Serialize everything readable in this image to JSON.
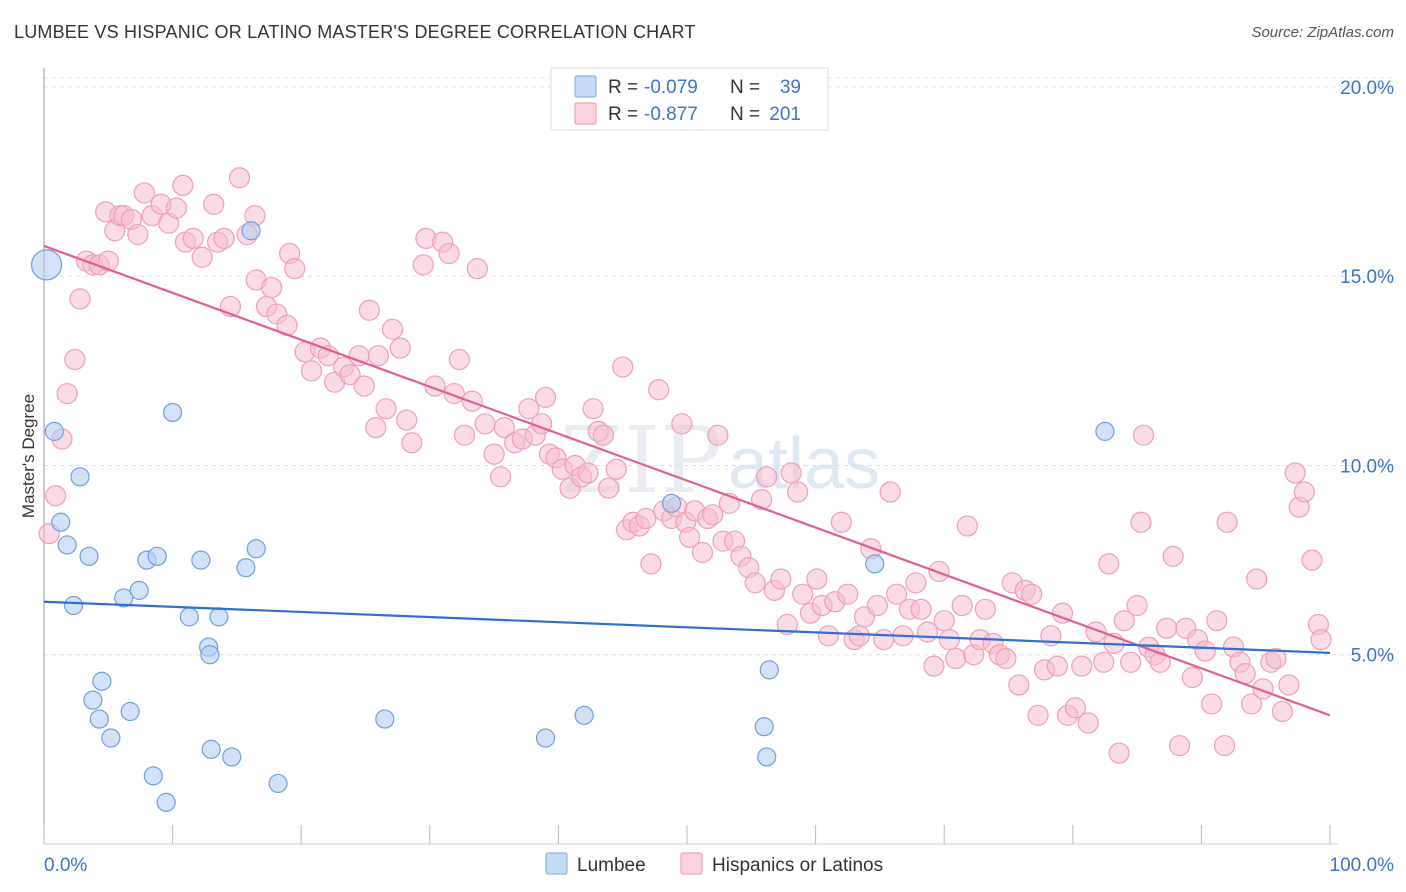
{
  "header": {
    "title": "LUMBEE VS HISPANIC OR LATINO MASTER'S DEGREE CORRELATION CHART",
    "source": "Source: ZipAtlas.com"
  },
  "watermark": {
    "zip": "ZIP",
    "atlas": "atlas"
  },
  "legend_top": {
    "rows": [
      {
        "r_label": "R =",
        "r_value": "-0.079",
        "n_label": "N =",
        "n_value": "39",
        "color": "#a9c6ee"
      },
      {
        "r_label": "R =",
        "r_value": "-0.877",
        "n_label": "N =",
        "n_value": "201",
        "color": "#f6b8cb"
      }
    ]
  },
  "legend_bottom": {
    "items": [
      {
        "label": "Lumbee",
        "color": "#a9c6ee"
      },
      {
        "label": "Hispanics or Latinos",
        "color": "#f6b8cb"
      }
    ]
  },
  "chart_data": {
    "type": "scatter",
    "title": "LUMBEE VS HISPANIC OR LATINO MASTER'S DEGREE CORRELATION CHART",
    "xlabel": "",
    "ylabel": "Master's Degree",
    "xlim": [
      0,
      100
    ],
    "ylim": [
      0,
      20.5
    ],
    "x_tick_labels": [
      "0.0%",
      "100.0%"
    ],
    "y_ticks": [
      5,
      10,
      15,
      20
    ],
    "y_tick_labels": [
      "5.0%",
      "10.0%",
      "15.0%",
      "20.0%"
    ],
    "grid": true,
    "legend_position": "top-center",
    "colors": {
      "lumbee": "#5b8fd6",
      "hispanic": "#e8799e",
      "lumbee_line": "#2f6fd0",
      "hispanic_line": "#e0608c"
    },
    "series": [
      {
        "name": "Lumbee",
        "trend": {
          "x": [
            0,
            100
          ],
          "y": [
            6.4,
            5.05
          ]
        },
        "points": [
          [
            0.2,
            15.3
          ],
          [
            0.8,
            10.9
          ],
          [
            1.3,
            8.5
          ],
          [
            1.8,
            7.9
          ],
          [
            2.3,
            6.3
          ],
          [
            2.8,
            9.7
          ],
          [
            3.5,
            7.6
          ],
          [
            3.8,
            3.8
          ],
          [
            4.3,
            3.3
          ],
          [
            4.5,
            4.3
          ],
          [
            5.2,
            2.8
          ],
          [
            6.2,
            6.5
          ],
          [
            6.7,
            3.5
          ],
          [
            7.4,
            6.7
          ],
          [
            8.0,
            7.5
          ],
          [
            8.5,
            1.8
          ],
          [
            8.8,
            7.6
          ],
          [
            9.5,
            1.1
          ],
          [
            10.0,
            11.4
          ],
          [
            11.3,
            6.0
          ],
          [
            12.2,
            7.5
          ],
          [
            12.8,
            5.2
          ],
          [
            12.9,
            5.0
          ],
          [
            13.0,
            2.5
          ],
          [
            13.6,
            6.0
          ],
          [
            14.6,
            2.3
          ],
          [
            15.7,
            7.3
          ],
          [
            16.1,
            16.2
          ],
          [
            16.5,
            7.8
          ],
          [
            18.2,
            1.6
          ],
          [
            26.5,
            3.3
          ],
          [
            39.0,
            2.8
          ],
          [
            42.0,
            3.4
          ],
          [
            48.8,
            9.0
          ],
          [
            56.0,
            3.1
          ],
          [
            56.2,
            2.3
          ],
          [
            56.4,
            4.6
          ],
          [
            64.6,
            7.4
          ],
          [
            82.5,
            10.9
          ]
        ]
      },
      {
        "name": "Hispanics or Latinos",
        "trend": {
          "x": [
            0,
            100
          ],
          "y": [
            15.8,
            3.4
          ]
        },
        "points": [
          [
            0.4,
            8.2
          ],
          [
            0.9,
            9.2
          ],
          [
            1.4,
            10.7
          ],
          [
            1.8,
            11.9
          ],
          [
            2.4,
            12.8
          ],
          [
            2.8,
            14.4
          ],
          [
            3.3,
            15.4
          ],
          [
            3.8,
            15.3
          ],
          [
            4.3,
            15.3
          ],
          [
            5.0,
            15.4
          ],
          [
            4.8,
            16.7
          ],
          [
            5.5,
            16.2
          ],
          [
            5.9,
            16.6
          ],
          [
            6.2,
            16.6
          ],
          [
            6.8,
            16.5
          ],
          [
            7.3,
            16.1
          ],
          [
            7.8,
            17.2
          ],
          [
            8.4,
            16.6
          ],
          [
            9.1,
            16.9
          ],
          [
            9.7,
            16.4
          ],
          [
            10.3,
            16.8
          ],
          [
            10.8,
            17.4
          ],
          [
            11.0,
            15.9
          ],
          [
            11.6,
            16.0
          ],
          [
            12.3,
            15.5
          ],
          [
            13.2,
            16.9
          ],
          [
            13.5,
            15.9
          ],
          [
            14.0,
            16.0
          ],
          [
            14.5,
            14.2
          ],
          [
            15.2,
            17.6
          ],
          [
            15.8,
            16.1
          ],
          [
            16.4,
            16.6
          ],
          [
            16.5,
            14.9
          ],
          [
            17.3,
            14.2
          ],
          [
            17.7,
            14.7
          ],
          [
            18.1,
            14.0
          ],
          [
            18.9,
            13.7
          ],
          [
            19.1,
            15.6
          ],
          [
            19.5,
            15.2
          ],
          [
            20.3,
            13.0
          ],
          [
            20.8,
            12.5
          ],
          [
            21.5,
            13.1
          ],
          [
            22.1,
            12.9
          ],
          [
            22.6,
            12.2
          ],
          [
            23.3,
            12.6
          ],
          [
            23.8,
            12.4
          ],
          [
            24.5,
            12.9
          ],
          [
            24.9,
            12.1
          ],
          [
            25.3,
            14.1
          ],
          [
            25.8,
            11.0
          ],
          [
            26.0,
            12.9
          ],
          [
            26.6,
            11.5
          ],
          [
            27.1,
            13.6
          ],
          [
            27.7,
            13.1
          ],
          [
            28.2,
            11.2
          ],
          [
            28.6,
            10.6
          ],
          [
            29.5,
            15.3
          ],
          [
            29.7,
            16.0
          ],
          [
            30.4,
            12.1
          ],
          [
            31.0,
            15.9
          ],
          [
            31.5,
            15.6
          ],
          [
            31.9,
            11.9
          ],
          [
            32.3,
            12.8
          ],
          [
            32.7,
            10.8
          ],
          [
            33.3,
            11.7
          ],
          [
            33.7,
            15.2
          ],
          [
            34.3,
            11.1
          ],
          [
            35.0,
            10.3
          ],
          [
            35.5,
            9.7
          ],
          [
            35.8,
            11.0
          ],
          [
            36.6,
            10.6
          ],
          [
            37.2,
            10.7
          ],
          [
            37.7,
            11.5
          ],
          [
            38.2,
            10.8
          ],
          [
            38.7,
            11.1
          ],
          [
            39.0,
            11.8
          ],
          [
            39.3,
            10.3
          ],
          [
            39.8,
            10.2
          ],
          [
            40.3,
            9.9
          ],
          [
            40.9,
            9.4
          ],
          [
            41.3,
            10.0
          ],
          [
            41.8,
            9.7
          ],
          [
            42.3,
            9.8
          ],
          [
            42.7,
            11.5
          ],
          [
            43.1,
            10.9
          ],
          [
            43.5,
            10.8
          ],
          [
            43.9,
            9.4
          ],
          [
            44.5,
            9.9
          ],
          [
            45.0,
            12.6
          ],
          [
            45.3,
            8.3
          ],
          [
            45.8,
            8.5
          ],
          [
            46.3,
            8.4
          ],
          [
            46.8,
            8.6
          ],
          [
            47.2,
            7.4
          ],
          [
            47.8,
            12.0
          ],
          [
            48.2,
            8.8
          ],
          [
            48.8,
            8.6
          ],
          [
            49.2,
            8.9
          ],
          [
            49.6,
            11.1
          ],
          [
            49.9,
            8.5
          ],
          [
            50.2,
            8.1
          ],
          [
            50.6,
            8.8
          ],
          [
            51.2,
            7.7
          ],
          [
            51.6,
            8.6
          ],
          [
            52.0,
            8.7
          ],
          [
            52.4,
            10.8
          ],
          [
            52.8,
            8.0
          ],
          [
            53.3,
            9.0
          ],
          [
            53.7,
            8.0
          ],
          [
            54.2,
            7.6
          ],
          [
            54.8,
            7.3
          ],
          [
            55.3,
            6.9
          ],
          [
            55.8,
            9.1
          ],
          [
            56.2,
            9.7
          ],
          [
            56.8,
            6.7
          ],
          [
            57.3,
            7.0
          ],
          [
            57.8,
            5.8
          ],
          [
            58.1,
            9.8
          ],
          [
            58.6,
            9.3
          ],
          [
            59.0,
            6.6
          ],
          [
            59.6,
            6.1
          ],
          [
            60.1,
            7.0
          ],
          [
            60.5,
            6.3
          ],
          [
            61.0,
            5.5
          ],
          [
            61.5,
            6.4
          ],
          [
            62.0,
            8.5
          ],
          [
            62.5,
            6.6
          ],
          [
            63.0,
            5.4
          ],
          [
            63.4,
            5.5
          ],
          [
            63.8,
            6.0
          ],
          [
            64.3,
            7.8
          ],
          [
            64.8,
            6.3
          ],
          [
            65.3,
            5.4
          ],
          [
            65.8,
            9.3
          ],
          [
            66.3,
            6.6
          ],
          [
            66.8,
            5.5
          ],
          [
            67.3,
            6.2
          ],
          [
            67.8,
            6.9
          ],
          [
            68.2,
            6.2
          ],
          [
            68.7,
            5.6
          ],
          [
            69.2,
            4.7
          ],
          [
            69.6,
            7.2
          ],
          [
            70.0,
            5.9
          ],
          [
            70.4,
            5.4
          ],
          [
            70.9,
            4.9
          ],
          [
            71.4,
            6.3
          ],
          [
            71.8,
            8.4
          ],
          [
            72.3,
            5.0
          ],
          [
            72.8,
            5.4
          ],
          [
            73.2,
            6.2
          ],
          [
            73.8,
            5.3
          ],
          [
            74.3,
            5.0
          ],
          [
            74.8,
            4.9
          ],
          [
            75.3,
            6.9
          ],
          [
            75.8,
            4.2
          ],
          [
            76.3,
            6.7
          ],
          [
            76.8,
            6.6
          ],
          [
            77.3,
            3.4
          ],
          [
            77.8,
            4.6
          ],
          [
            78.3,
            5.5
          ],
          [
            78.8,
            4.7
          ],
          [
            79.2,
            6.1
          ],
          [
            79.6,
            3.4
          ],
          [
            80.2,
            3.6
          ],
          [
            80.7,
            4.7
          ],
          [
            81.2,
            3.2
          ],
          [
            81.8,
            5.6
          ],
          [
            82.4,
            4.8
          ],
          [
            82.8,
            7.4
          ],
          [
            83.2,
            5.3
          ],
          [
            83.6,
            2.4
          ],
          [
            84.0,
            5.9
          ],
          [
            84.5,
            4.8
          ],
          [
            85.0,
            6.3
          ],
          [
            85.3,
            8.5
          ],
          [
            85.5,
            10.8
          ],
          [
            85.9,
            5.2
          ],
          [
            86.4,
            5.0
          ],
          [
            86.8,
            4.8
          ],
          [
            87.3,
            5.7
          ],
          [
            87.8,
            7.6
          ],
          [
            88.3,
            2.6
          ],
          [
            88.8,
            5.7
          ],
          [
            89.3,
            4.4
          ],
          [
            89.7,
            5.4
          ],
          [
            90.3,
            5.1
          ],
          [
            90.8,
            3.7
          ],
          [
            91.2,
            5.9
          ],
          [
            91.8,
            2.6
          ],
          [
            92.0,
            8.5
          ],
          [
            92.5,
            5.2
          ],
          [
            93.0,
            4.8
          ],
          [
            93.4,
            4.5
          ],
          [
            93.9,
            3.7
          ],
          [
            94.3,
            7.0
          ],
          [
            94.8,
            4.1
          ],
          [
            95.4,
            4.8
          ],
          [
            95.8,
            4.9
          ],
          [
            96.3,
            3.5
          ],
          [
            96.8,
            4.2
          ],
          [
            97.3,
            9.8
          ],
          [
            97.6,
            8.9
          ],
          [
            98.0,
            9.3
          ],
          [
            98.6,
            7.5
          ],
          [
            99.1,
            5.8
          ],
          [
            99.3,
            5.4
          ]
        ]
      }
    ]
  }
}
